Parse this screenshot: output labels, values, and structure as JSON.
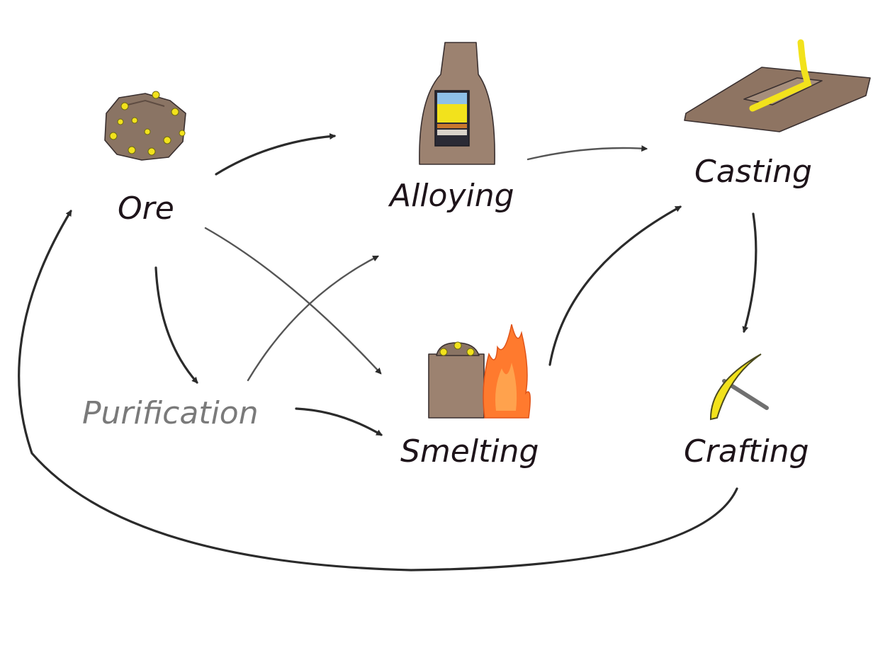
{
  "nodes": {
    "ore": "Ore",
    "alloying": "Alloying",
    "casting": "Casting",
    "purification": "Purification",
    "smelting": "Smelting",
    "crafting": "Crafting"
  },
  "colors": {
    "label": "#1e141a",
    "label_muted": "#7a7a7a",
    "arrow": "#2b2b2b",
    "rock": "#8a7464",
    "gold": "#f2e21c",
    "furnace": "#9c8270",
    "flame": "#ff7a2e",
    "mold": "#8e7462",
    "sky_band": "#8ec0e8",
    "dark_band": "#2a2a35"
  },
  "icons": {
    "ore": "ore-rock-icon",
    "alloying": "furnace-icon",
    "casting": "casting-mold-icon",
    "smelting": "smelting-fire-icon",
    "crafting": "pickaxe-icon"
  }
}
